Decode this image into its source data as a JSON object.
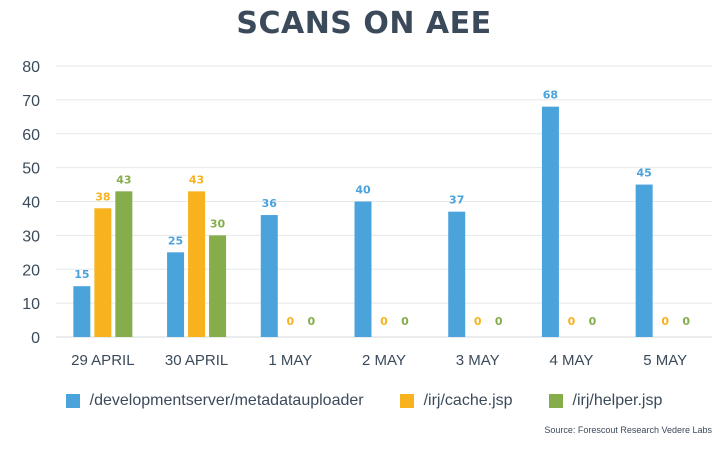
{
  "chart_data": {
    "type": "bar",
    "title": "SCANS ON AEE",
    "categories": [
      "29 APRIL",
      "30 APRIL",
      "1 MAY",
      "2 MAY",
      "3 MAY",
      "4 MAY",
      "5 MAY"
    ],
    "series": [
      {
        "name": "/developmentserver/metadatauploader",
        "color": "#4ba3dc",
        "values": [
          15,
          25,
          36,
          40,
          37,
          68,
          45
        ]
      },
      {
        "name": "/irj/cache.jsp",
        "color": "#f7b21e",
        "values": [
          38,
          43,
          0,
          0,
          0,
          0,
          0
        ]
      },
      {
        "name": "/irj/helper.jsp",
        "color": "#86ad4b",
        "values": [
          43,
          30,
          0,
          0,
          0,
          0,
          0
        ]
      }
    ],
    "ylim": [
      0,
      80
    ],
    "yticks": [
      0,
      10,
      20,
      30,
      40,
      50,
      60,
      70,
      80
    ],
    "grid": true,
    "legend": "bottom",
    "source": "Source: Forescout Research Vedere Labs"
  }
}
